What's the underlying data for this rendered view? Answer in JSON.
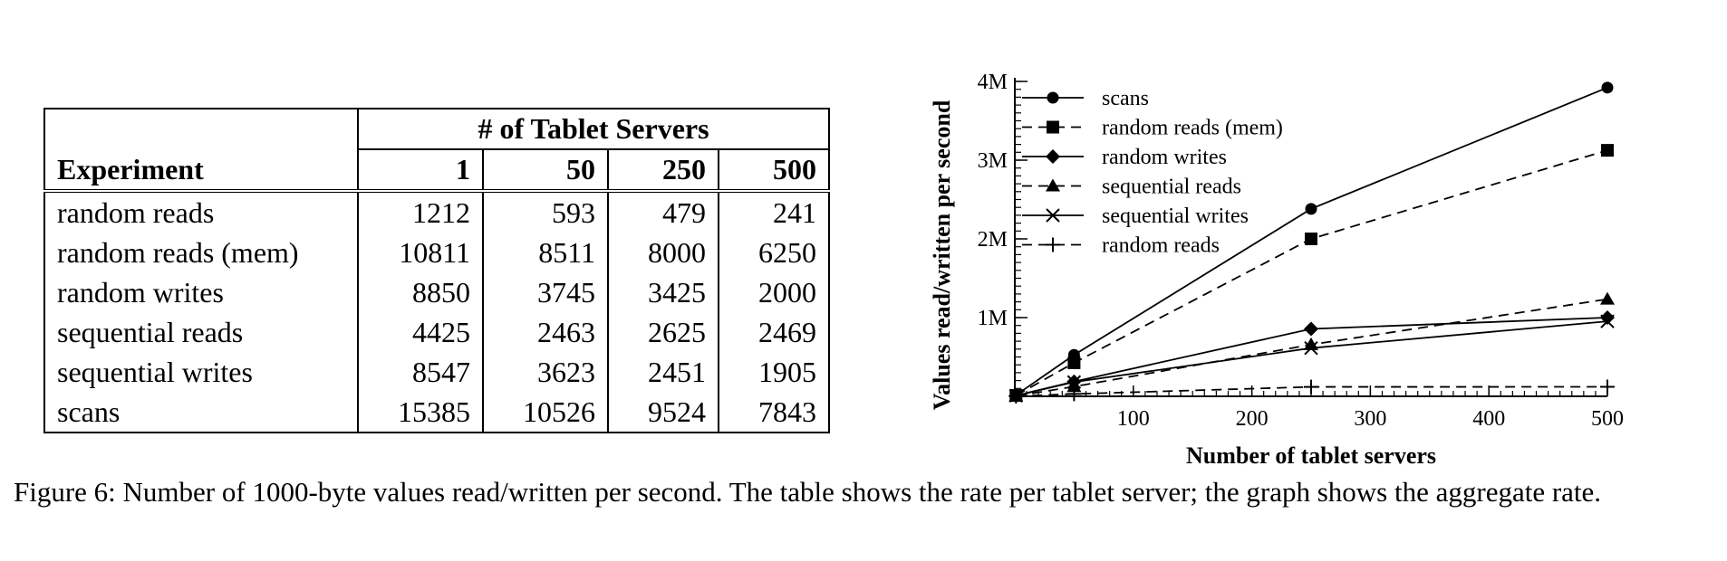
{
  "table": {
    "group_header": "# of Tablet Servers",
    "row_header": "Experiment",
    "columns": [
      "1",
      "50",
      "250",
      "500"
    ],
    "rows": [
      {
        "label": "random reads",
        "values": [
          "1212",
          "593",
          "479",
          "241"
        ]
      },
      {
        "label": "random reads (mem)",
        "values": [
          "10811",
          "8511",
          "8000",
          "6250"
        ]
      },
      {
        "label": "random writes",
        "values": [
          "8850",
          "3745",
          "3425",
          "2000"
        ]
      },
      {
        "label": "sequential reads",
        "values": [
          "4425",
          "2463",
          "2625",
          "2469"
        ]
      },
      {
        "label": "sequential writes",
        "values": [
          "8547",
          "3623",
          "2451",
          "1905"
        ]
      },
      {
        "label": "scans",
        "values": [
          "15385",
          "10526",
          "9524",
          "7843"
        ]
      }
    ]
  },
  "chart_data": {
    "type": "line",
    "xlabel": "Number of tablet servers",
    "ylabel": "Values read/written per second",
    "xlim": [
      0,
      500
    ],
    "ylim": [
      0,
      4000000
    ],
    "x_ticks": [
      100,
      200,
      300,
      400,
      500
    ],
    "x_tick_labels": [
      "100",
      "200",
      "300",
      "400",
      "500"
    ],
    "y_ticks": [
      1000000,
      2000000,
      3000000,
      4000000
    ],
    "y_tick_labels": [
      "1M",
      "2M",
      "3M",
      "4M"
    ],
    "legend_position": "top-left",
    "x": [
      1,
      50,
      250,
      500
    ],
    "series": [
      {
        "name": "scans",
        "marker": "circle",
        "dash": "solid",
        "values": [
          15385,
          526300,
          2381000,
          3921500
        ]
      },
      {
        "name": "random reads (mem)",
        "marker": "square",
        "dash": "dashed",
        "values": [
          10811,
          425550,
          2000000,
          3125000
        ]
      },
      {
        "name": "random writes",
        "marker": "diamond",
        "dash": "solid",
        "values": [
          8850,
          187250,
          856250,
          1000000
        ]
      },
      {
        "name": "sequential reads",
        "marker": "triangle",
        "dash": "dashed",
        "values": [
          4425,
          123150,
          656250,
          1234500
        ]
      },
      {
        "name": "sequential writes",
        "marker": "x",
        "dash": "solid",
        "values": [
          8547,
          181150,
          612750,
          952500
        ]
      },
      {
        "name": "random reads",
        "marker": "plus",
        "dash": "dashed",
        "values": [
          1212,
          29650,
          119750,
          120500
        ]
      }
    ]
  },
  "caption": "Figure 6: Number of 1000-byte values read/written per second. The table shows the rate per tablet server; the graph shows the aggregate rate."
}
